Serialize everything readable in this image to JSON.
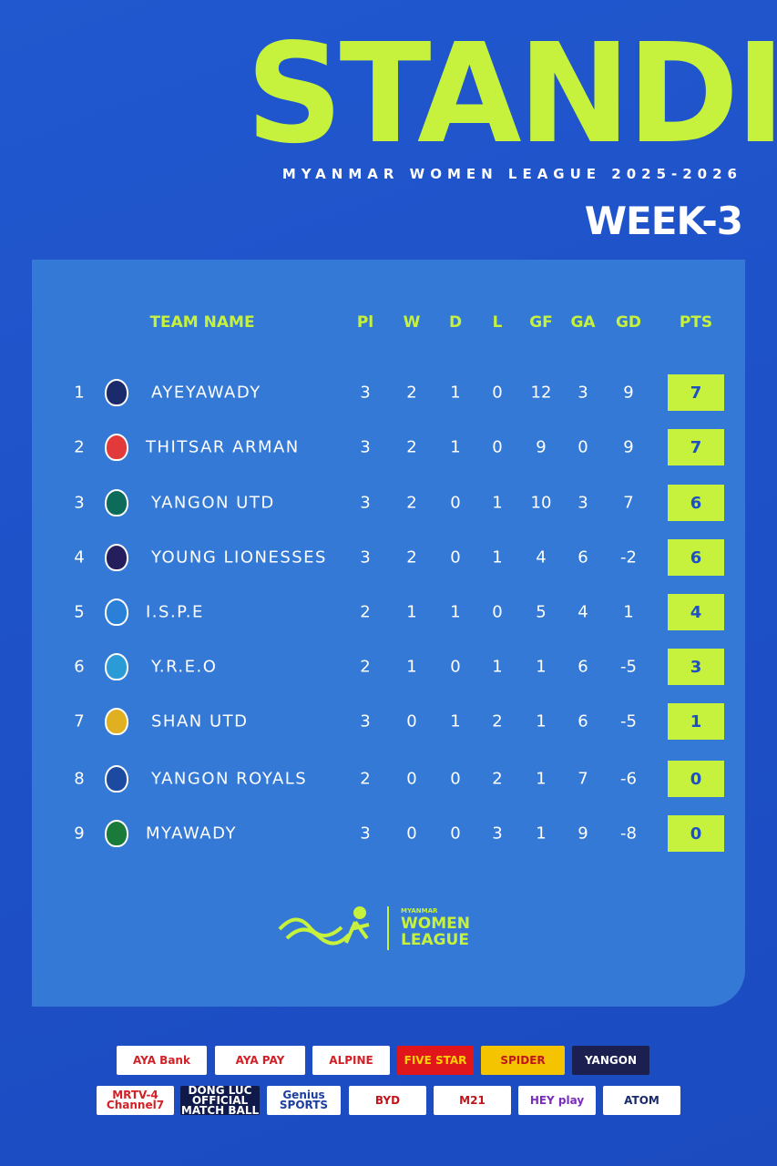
{
  "header": {
    "title": "STANDING",
    "subtitle": "MYANMAR WOMEN LEAGUE 2025-2026",
    "week": "WEEK-3"
  },
  "table": {
    "columns": [
      "TEAM NAME",
      "Pl",
      "W",
      "D",
      "L",
      "GF",
      "GA",
      "GD",
      "PTS"
    ],
    "rows": [
      [
        1,
        "AYEYAWADY",
        3,
        2,
        1,
        0,
        12,
        3,
        9,
        7
      ],
      [
        2,
        "THITSAR ARMAN",
        3,
        2,
        1,
        0,
        9,
        0,
        9,
        7
      ],
      [
        3,
        "YANGON UTD",
        3,
        2,
        0,
        1,
        10,
        3,
        7,
        6
      ],
      [
        4,
        "YOUNG LIONESSES",
        3,
        2,
        0,
        1,
        4,
        6,
        -2,
        6
      ],
      [
        5,
        "I.S.P.E",
        2,
        1,
        1,
        0,
        5,
        4,
        1,
        4
      ],
      [
        6,
        "Y.R.E.O",
        2,
        1,
        0,
        1,
        1,
        6,
        -5,
        3
      ],
      [
        7,
        "SHAN UTD",
        3,
        0,
        1,
        2,
        1,
        6,
        -5,
        1
      ],
      [
        8,
        "YANGON ROYALS",
        2,
        0,
        0,
        2,
        1,
        7,
        -6,
        0
      ],
      [
        9,
        "MYAWADY",
        3,
        0,
        0,
        3,
        1,
        9,
        -8,
        0
      ]
    ]
  },
  "league_logo": {
    "top": "MYANMAR",
    "name": "WOMEN LEAGUE"
  },
  "sponsors": [
    "AYA Bank",
    "AYA PAY",
    "ALPINE",
    "FIVE STAR",
    "SPIDER",
    "YANGON",
    "MRTV-4 Channel7",
    "DONG LUC OFFICIAL MATCH BALL",
    "Genius SPORTS",
    "BYD",
    "M21",
    "HEY play",
    "ATOM"
  ]
}
